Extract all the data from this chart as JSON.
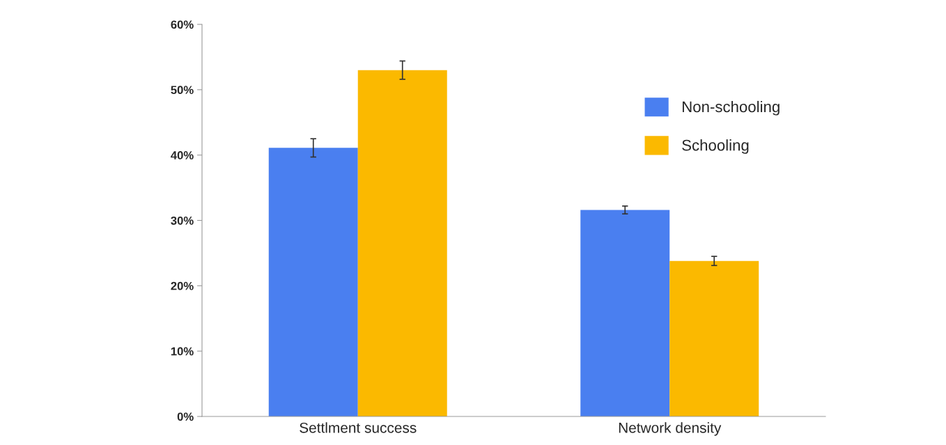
{
  "chart_data": {
    "type": "bar",
    "categories": [
      "Settlment success",
      "Network density"
    ],
    "series": [
      {
        "name": "Non-schooling",
        "color": "#4a7ff0",
        "values": [
          41.1,
          31.6
        ],
        "errors": [
          1.4,
          0.6
        ]
      },
      {
        "name": "Schooling",
        "color": "#fbb900",
        "values": [
          53.0,
          23.8
        ],
        "errors": [
          1.4,
          0.7
        ]
      }
    ],
    "ylim": [
      0,
      60
    ],
    "yticks": [
      {
        "value": 0,
        "label": "0%"
      },
      {
        "value": 10,
        "label": "10%"
      },
      {
        "value": 20,
        "label": "20%"
      },
      {
        "value": 30,
        "label": "30%"
      },
      {
        "value": 40,
        "label": "40%"
      },
      {
        "value": 50,
        "label": "50%"
      },
      {
        "value": 60,
        "label": "60%"
      }
    ],
    "grid": false,
    "legend": "top right"
  }
}
